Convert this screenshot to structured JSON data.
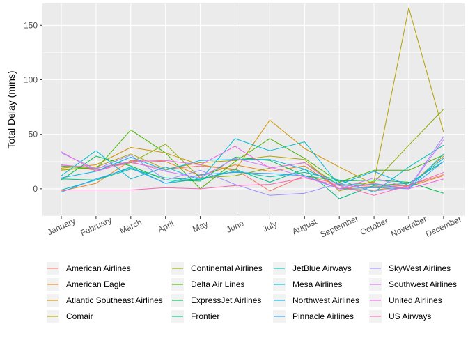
{
  "chart_data": {
    "type": "line",
    "title": "",
    "xlabel": "",
    "ylabel": "Total Delay (mins)",
    "categories": [
      "January",
      "February",
      "March",
      "April",
      "May",
      "June",
      "July",
      "August",
      "September",
      "October",
      "November",
      "December"
    ],
    "ylim": [
      -25,
      170
    ],
    "yticks": [
      0,
      50,
      100,
      150
    ],
    "grid": true,
    "legend_position": "bottom",
    "colors": {
      "panel_background": "#ebebeb",
      "grid_line": "#ffffff"
    },
    "series": [
      {
        "name": "American Airlines",
        "color": "#F8766D",
        "values": [
          22,
          17,
          24,
          18,
          21,
          18,
          -2,
          12,
          4,
          2,
          3,
          13
        ]
      },
      {
        "name": "American Eagle",
        "color": "#E7851E",
        "values": [
          -2,
          5,
          26,
          25,
          12,
          22,
          16,
          21,
          0,
          -1,
          2,
          12
        ]
      },
      {
        "name": "Atlantic Southeast Airlines",
        "color": "#D09400",
        "values": [
          19,
          22,
          38,
          33,
          22,
          17,
          63,
          37,
          20,
          4,
          3,
          30
        ]
      },
      {
        "name": "Comair",
        "color": "#B2A100",
        "values": [
          17,
          20,
          32,
          18,
          24,
          26,
          30,
          27,
          -2,
          7,
          166,
          52
        ]
      },
      {
        "name": "Continental Airlines",
        "color": "#89AC00",
        "values": [
          18,
          19,
          24,
          41,
          10,
          12,
          19,
          24,
          3,
          6,
          40,
          73
        ]
      },
      {
        "name": "Delta Air Lines",
        "color": "#45B500",
        "values": [
          21,
          18,
          54,
          33,
          0,
          25,
          46,
          28,
          6,
          17,
          17,
          31
        ]
      },
      {
        "name": "ExpressJet Airlines",
        "color": "#00BC51",
        "values": [
          8,
          30,
          21,
          8,
          7,
          29,
          26,
          12,
          7,
          8,
          6,
          -4
        ]
      },
      {
        "name": "Frontier",
        "color": "#00C087",
        "values": [
          9,
          8,
          18,
          10,
          8,
          18,
          6,
          18,
          -9,
          3,
          5,
          25
        ]
      },
      {
        "name": "JetBlue Airways",
        "color": "#00C0B2",
        "values": [
          -1,
          8,
          20,
          5,
          9,
          16,
          11,
          15,
          8,
          -3,
          20,
          40
        ]
      },
      {
        "name": "Mesa Airlines",
        "color": "#00BCD6",
        "values": [
          12,
          35,
          9,
          20,
          8,
          46,
          35,
          43,
          3,
          4,
          0,
          32
        ]
      },
      {
        "name": "Northwest Airlines",
        "color": "#00B3F2",
        "values": [
          10,
          16,
          29,
          17,
          26,
          27,
          27,
          18,
          4,
          16,
          3,
          28
        ]
      },
      {
        "name": "Pinnacle Airlines",
        "color": "#29A3FF",
        "values": [
          -3,
          9,
          19,
          5,
          13,
          15,
          14,
          12,
          0,
          1,
          0,
          25
        ]
      },
      {
        "name": "SkyWest Airlines",
        "color": "#9C8DFF",
        "values": [
          33,
          18,
          31,
          8,
          17,
          4,
          -6,
          -4,
          5,
          -2,
          1,
          48
        ]
      },
      {
        "name": "Southwest Airlines",
        "color": "#D277FF",
        "values": [
          22,
          19,
          25,
          16,
          10,
          28,
          20,
          11,
          0,
          10,
          1,
          45
        ]
      },
      {
        "name": "United Airlines",
        "color": "#F166E8",
        "values": [
          34,
          16,
          25,
          26,
          22,
          39,
          19,
          24,
          0,
          5,
          0,
          9
        ]
      },
      {
        "name": "US Airways",
        "color": "#FF63B6",
        "values": [
          -1,
          -1,
          -1,
          1,
          0,
          3,
          4,
          10,
          3,
          -6,
          3,
          15
        ]
      }
    ]
  }
}
